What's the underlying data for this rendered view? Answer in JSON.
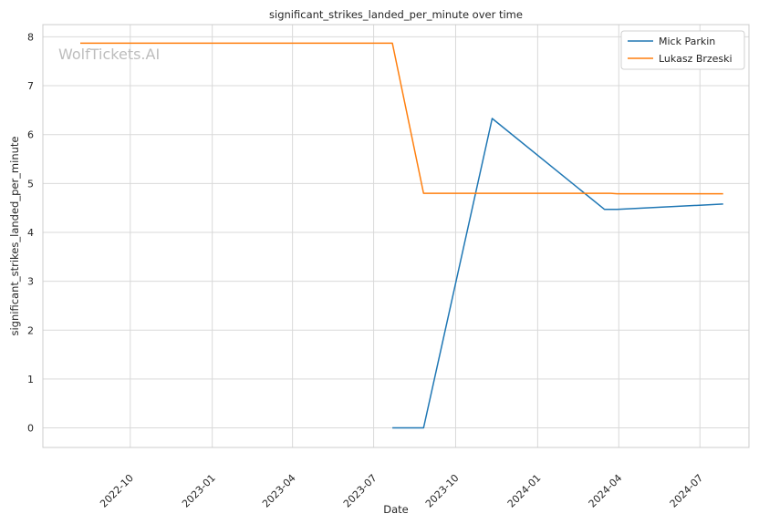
{
  "watermark": "WolfTickets.AI",
  "chart_data": {
    "type": "line",
    "title": "significant_strikes_landed_per_minute over time",
    "xlabel": "Date",
    "ylabel": "significant_strikes_landed_per_minute",
    "x_ticks": [
      "2022-10",
      "2023-01",
      "2023-04",
      "2023-07",
      "2023-10",
      "2024-01",
      "2024-04",
      "2024-07"
    ],
    "y_ticks": [
      0,
      1,
      2,
      3,
      4,
      5,
      6,
      7,
      8
    ],
    "xlim": [
      "2022-06-25",
      "2024-08-25"
    ],
    "ylim": [
      -0.4,
      8.25
    ],
    "grid": true,
    "legend_position": "top-right",
    "series": [
      {
        "name": "Mick Parkin",
        "color": "#1f77b4",
        "points": [
          {
            "x": "2023-07-22",
            "y": 0.0
          },
          {
            "x": "2023-08-26",
            "y": 0.0
          },
          {
            "x": "2023-11-11",
            "y": 6.33
          },
          {
            "x": "2024-03-16",
            "y": 4.47
          },
          {
            "x": "2024-03-30",
            "y": 4.47
          },
          {
            "x": "2024-07-27",
            "y": 4.58
          }
        ]
      },
      {
        "name": "Lukasz Brzeski",
        "color": "#ff7f0e",
        "points": [
          {
            "x": "2022-08-06",
            "y": 7.87
          },
          {
            "x": "2023-07-22",
            "y": 7.87
          },
          {
            "x": "2023-08-26",
            "y": 4.8
          },
          {
            "x": "2024-03-23",
            "y": 4.8
          },
          {
            "x": "2024-03-30",
            "y": 4.79
          },
          {
            "x": "2024-07-27",
            "y": 4.79
          }
        ]
      }
    ]
  }
}
